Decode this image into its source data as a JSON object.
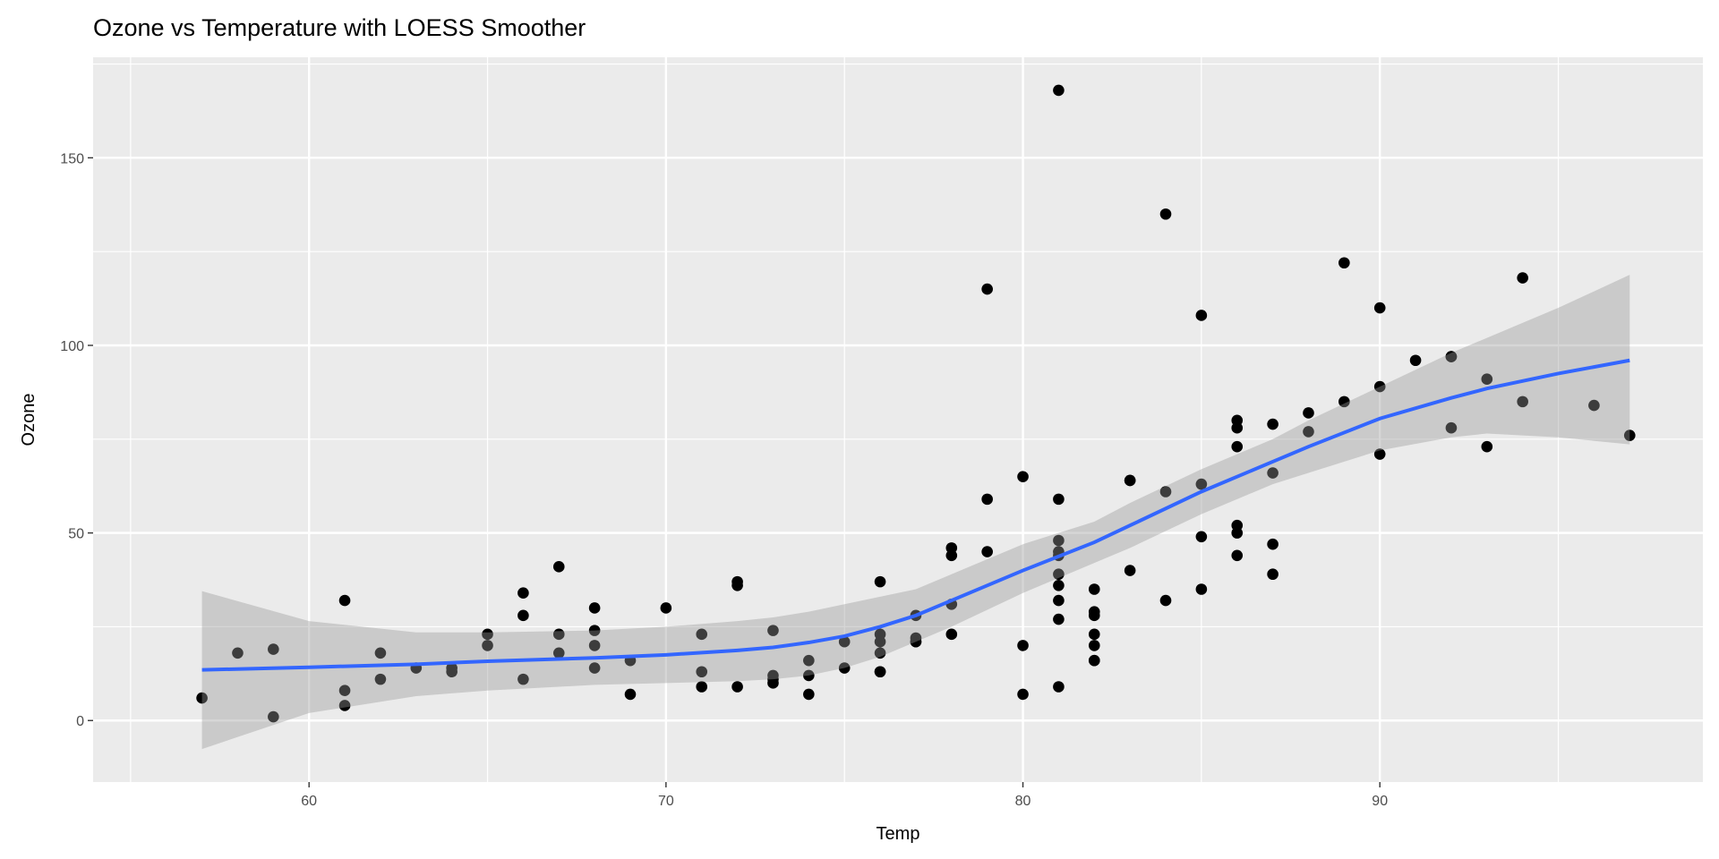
{
  "chart_data": {
    "type": "scatter",
    "title": "Ozone vs Temperature with LOESS Smoother",
    "xlabel": "Temp",
    "ylabel": "Ozone",
    "xlim": [
      53.95,
      99.05
    ],
    "ylim": [
      -16.4,
      176.8
    ],
    "x_ticks": [
      60,
      70,
      80,
      90
    ],
    "x_tick_labels": [
      "60",
      "70",
      "80",
      "90"
    ],
    "y_ticks": [
      0,
      50,
      100,
      150
    ],
    "y_tick_labels": [
      "0",
      "50",
      "100",
      "150"
    ],
    "x_minor": [
      55,
      65,
      75,
      85,
      95
    ],
    "y_minor": [
      -25,
      25,
      75,
      125,
      175
    ],
    "grid": true,
    "colors": {
      "panel": "#EBEBEB",
      "grid": "#FFFFFF",
      "points": "#000000",
      "smooth": "#3366FF",
      "ribbon": "#999999"
    },
    "points": {
      "x": [
        67,
        72,
        74,
        62,
        66,
        65,
        59,
        61,
        74,
        69,
        66,
        68,
        58,
        64,
        66,
        57,
        68,
        62,
        59,
        73,
        61,
        61,
        67,
        81,
        79,
        76,
        82,
        90,
        87,
        82,
        77,
        72,
        65,
        73,
        76,
        84,
        85,
        81,
        83,
        83,
        88,
        92,
        92,
        89,
        73,
        81,
        80,
        81,
        82,
        84,
        87,
        85,
        74,
        86,
        85,
        82,
        86,
        88,
        86,
        83,
        81,
        81,
        81,
        82,
        86,
        85,
        87,
        89,
        90,
        90,
        86,
        82,
        80,
        77,
        79,
        76,
        78,
        78,
        77,
        72,
        79,
        81,
        86,
        97,
        94,
        96,
        94,
        91,
        92,
        93,
        93,
        87,
        84,
        80,
        78,
        75,
        73,
        81,
        76,
        77,
        71,
        71,
        78,
        67,
        76,
        68,
        82,
        64,
        71,
        81,
        69,
        63,
        70,
        75,
        76,
        68
      ],
      "y": [
        41,
        36,
        12,
        18,
        28,
        23,
        19,
        8,
        7,
        16,
        11,
        14,
        18,
        14,
        34,
        6,
        30,
        11,
        1,
        11,
        4,
        32,
        23,
        45,
        115,
        37,
        29,
        71,
        39,
        23,
        21,
        37,
        20,
        12,
        13,
        135,
        49,
        32,
        64,
        40,
        77,
        97,
        97,
        85,
        10,
        27,
        7,
        48,
        35,
        61,
        79,
        63,
        16,
        80,
        108,
        20,
        52,
        82,
        50,
        64,
        59,
        39,
        9,
        16,
        78,
        35,
        66,
        122,
        89,
        110,
        44,
        28,
        65,
        22,
        59,
        23,
        31,
        44,
        21,
        9,
        45,
        168,
        73,
        76,
        118,
        84,
        85,
        96,
        78,
        73,
        91,
        47,
        32,
        20,
        23,
        21,
        24,
        44,
        21,
        28,
        9,
        13,
        46,
        18,
        13,
        24,
        16,
        13,
        23,
        36,
        7,
        14,
        30,
        14,
        18,
        20
      ]
    },
    "smooth": {
      "method": "loess",
      "x": [
        57,
        60,
        63,
        65,
        68,
        70,
        72,
        73,
        74,
        75,
        76,
        77,
        78,
        80,
        82,
        83,
        85,
        87,
        88,
        90,
        92,
        93,
        95,
        97
      ],
      "y": [
        13.5,
        14.2,
        15.0,
        15.8,
        16.7,
        17.5,
        18.7,
        19.5,
        20.8,
        22.5,
        25,
        28,
        32,
        40,
        47.5,
        52,
        61,
        69,
        73,
        80.5,
        86,
        88.5,
        92.5,
        96
      ],
      "ymin": [
        -7.6,
        2,
        6.5,
        8,
        9.5,
        10,
        10.5,
        11,
        12,
        14,
        17,
        21,
        25,
        34,
        42,
        46,
        55,
        63,
        66,
        72,
        75.5,
        76.5,
        75.5,
        73.6
      ],
      "ymax": [
        34.5,
        26.5,
        23.5,
        23.5,
        24,
        25,
        26.5,
        27.5,
        29,
        31,
        33,
        35,
        39,
        47,
        53,
        58,
        67,
        75,
        80,
        89,
        98,
        102,
        110,
        118.8
      ]
    }
  }
}
